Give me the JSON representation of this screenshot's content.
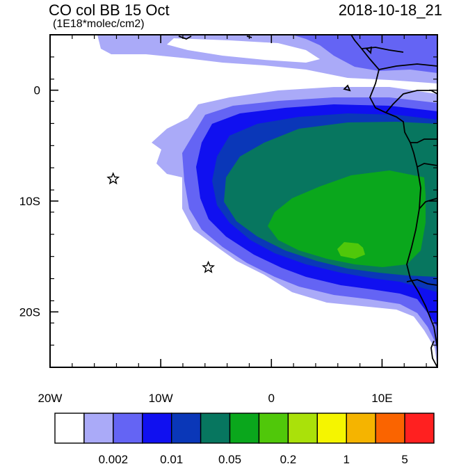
{
  "header": {
    "title": "CO col BB 15 Oct",
    "units": "(1E18*molec/cm2)",
    "timestamp": "2018-10-18_21"
  },
  "map": {
    "lon_range": [
      -20,
      15
    ],
    "lat_range": [
      -25,
      5
    ],
    "x_ticks": [
      {
        "value": -20,
        "label": "20W"
      },
      {
        "value": -10,
        "label": "10W"
      },
      {
        "value": 0,
        "label": "0"
      },
      {
        "value": 10,
        "label": "10E"
      }
    ],
    "y_ticks": [
      {
        "value": 0,
        "label": "0"
      },
      {
        "value": -10,
        "label": "10S"
      },
      {
        "value": -20,
        "label": "20S"
      }
    ],
    "markers": [
      {
        "lon": -14.3,
        "lat": -8.0,
        "symbol": "star"
      },
      {
        "lon": -5.7,
        "lat": -16.0,
        "symbol": "star"
      }
    ]
  },
  "colorbar": {
    "colors": [
      "#ffffff",
      "#aaaaf8",
      "#6464f4",
      "#1010f0",
      "#0a37b8",
      "#07765f",
      "#0aa71c",
      "#50c80a",
      "#aae10a",
      "#f5f500",
      "#f5b400",
      "#fa6400",
      "#ff2020"
    ],
    "labels": [
      {
        "after_index": 2,
        "text": "0.002"
      },
      {
        "after_index": 4,
        "text": "0.01"
      },
      {
        "after_index": 6,
        "text": "0.05"
      },
      {
        "after_index": 8,
        "text": "0.2"
      },
      {
        "after_index": 10,
        "text": "1"
      },
      {
        "after_index": 12,
        "text": "5"
      }
    ]
  }
}
